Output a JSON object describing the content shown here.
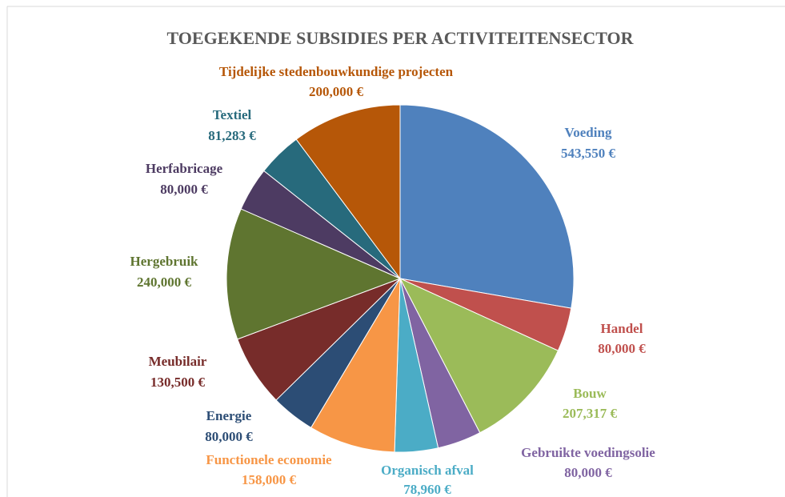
{
  "chart_data": {
    "type": "pie",
    "title": "TOEGEKENDE SUBSIDIES PER ACTIVITEITENSECTOR",
    "categories": [
      "Voeding",
      "Handel",
      "Bouw",
      "Gebruikte voedingsolie",
      "Organisch afval",
      "Functionele economie",
      "Energie",
      "Meubilair",
      "Hergebruik",
      "Herfabricage",
      "Textiel",
      "Tijdelijke stedenbouwkundige projecten"
    ],
    "values": [
      543550,
      80000,
      207317,
      80000,
      78960,
      158000,
      80000,
      130500,
      240000,
      80000,
      81283,
      200000
    ],
    "value_labels": [
      "543,550 €",
      "80,000 €",
      "207,317 €",
      "80,000 €",
      "78,960 €",
      "158,000 €",
      "80,000 €",
      "130,500 €",
      "240,000 €",
      "80,000 €",
      "81,283 €",
      "200,000 €"
    ],
    "colors": [
      "#4f81bd",
      "#c0504d",
      "#9bbb59",
      "#8064a2",
      "#4bacc6",
      "#f79646",
      "#2c4d75",
      "#772c2a",
      "#5f7530",
      "#4d3b62",
      "#276a7c",
      "#b65708"
    ]
  }
}
